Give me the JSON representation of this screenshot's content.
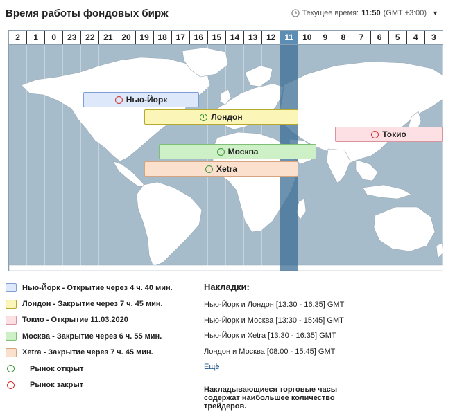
{
  "header": {
    "title": "Время работы фондовых бирж",
    "clock_label": "Текущее время:",
    "clock_time": "11:50",
    "clock_zone": "(GMT +3:00)"
  },
  "hours": [
    "2",
    "1",
    "0",
    "23",
    "22",
    "21",
    "20",
    "19",
    "18",
    "17",
    "16",
    "15",
    "14",
    "13",
    "12",
    "11",
    "10",
    "9",
    "8",
    "7",
    "6",
    "5",
    "4",
    "3"
  ],
  "current_hour": "11",
  "exchanges": [
    {
      "name": "Нью-Йорк",
      "status": "closed",
      "fill": "#dde8fb",
      "border": "#7d9fd6"
    },
    {
      "name": "Лондон",
      "status": "open",
      "fill": "#fbf6b8",
      "border": "#b5a92e"
    },
    {
      "name": "Токио",
      "status": "closed",
      "fill": "#fce0e4",
      "border": "#d9949e"
    },
    {
      "name": "Москва",
      "status": "open",
      "fill": "#cef0c6",
      "border": "#7fbf75"
    },
    {
      "name": "Xetra",
      "status": "open",
      "fill": "#fbe1cd",
      "border": "#d6a47e"
    }
  ],
  "legend": {
    "items": [
      {
        "text": "Нью-Йорк - Открытие через 4 ч. 40 мин.",
        "fill": "#dde8fb",
        "border": "#7d9fd6"
      },
      {
        "text": "Лондон - Закрытие через 7 ч. 45 мин.",
        "fill": "#fbf6b8",
        "border": "#b5a92e"
      },
      {
        "text": "Токио - Открытие 11.03.2020",
        "fill": "#fce0e4",
        "border": "#d9949e"
      },
      {
        "text": "Москва - Закрытие через 6 ч. 55 мин.",
        "fill": "#cef0c6",
        "border": "#7fbf75"
      },
      {
        "text": "Xetra - Закрытие через 7 ч. 45 мин.",
        "fill": "#fbe1cd",
        "border": "#d6a47e"
      }
    ],
    "market_open": "Рынок открыт",
    "market_closed": "Рынок закрыт"
  },
  "overlaps": {
    "title": "Накладки:",
    "rows": [
      "Нью-Йорк и Лондон [13:30 - 16:35] GMT",
      "Нью-Йорк и Москва [13:30 - 15:45] GMT",
      "Нью-Йорк и Xetra [13:30 - 16:35] GMT",
      "Лондон и Москва [08:00 - 15:45] GMT"
    ],
    "more": "Ещё",
    "note": "Накладывающиеся торговые часы содержат наибольшее количество трейдеров."
  }
}
